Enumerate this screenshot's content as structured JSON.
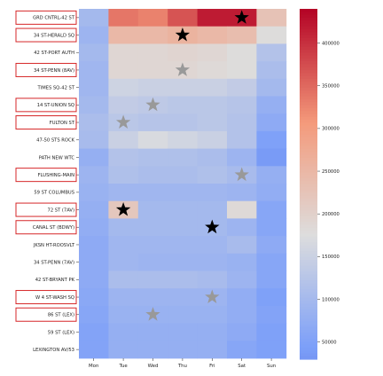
{
  "chart_data": {
    "type": "heatmap",
    "title": "",
    "xlabel": "",
    "ylabel": "",
    "days": [
      "Mon",
      "Tue",
      "Wed",
      "Thu",
      "Fri",
      "Sat",
      "Sun"
    ],
    "stations": [
      "GRD CNTRL-42 ST",
      "34 ST-HERALD SQ",
      "42 ST-PORT AUTH",
      "34 ST-PENN (8AV)",
      "TIMES SQ-42 ST",
      "14 ST-UNION SQ",
      "FULTON ST",
      "47-50 STS ROCK",
      "PATH NEW WTC",
      "FLUSHING-MAIN",
      "59 ST COLUMBUS",
      "72 ST (7AV)",
      "CANAL ST (BDWY)",
      "JKSN HT-ROOSVLT",
      "34 ST-PENN (7AV)",
      "42 ST-BRYANT PK",
      "W 4 ST-WASH SQ",
      "86 ST (LEX)",
      "59 ST (LEX)",
      "LEXINGTON AV/53"
    ],
    "highlighted_stations": [
      "GRD CNTRL-42 ST",
      "34 ST-HERALD SQ",
      "34 ST-PENN (8AV)",
      "14 ST-UNION SQ",
      "FULTON ST",
      "FLUSHING-MAIN",
      "72 ST (7AV)",
      "CANAL ST (BDWY)",
      "W 4 ST-WASH SQ",
      "86 ST (LEX)"
    ],
    "values": [
      [
        100000,
        340000,
        330000,
        370000,
        420000,
        420000,
        230000
      ],
      [
        90000,
        250000,
        250000,
        260000,
        250000,
        240000,
        180000
      ],
      [
        100000,
        190000,
        190000,
        195000,
        190000,
        180000,
        120000
      ],
      [
        95000,
        190000,
        190000,
        190000,
        185000,
        180000,
        110000
      ],
      [
        95000,
        155000,
        150000,
        150000,
        150000,
        140000,
        100000
      ],
      [
        100000,
        140000,
        135000,
        130000,
        130000,
        125000,
        80000
      ],
      [
        110000,
        130000,
        125000,
        125000,
        130000,
        120000,
        70000
      ],
      [
        105000,
        150000,
        170000,
        160000,
        150000,
        120000,
        50000
      ],
      [
        80000,
        120000,
        115000,
        115000,
        110000,
        90000,
        40000
      ],
      [
        90000,
        115000,
        110000,
        110000,
        115000,
        105000,
        80000
      ],
      [
        85000,
        95000,
        95000,
        95000,
        95000,
        90000,
        75000
      ],
      [
        80000,
        220000,
        100000,
        100000,
        100000,
        185000,
        60000
      ],
      [
        75000,
        100000,
        100000,
        100000,
        100000,
        90000,
        60000
      ],
      [
        70000,
        95000,
        95000,
        95000,
        95000,
        105000,
        70000
      ],
      [
        70000,
        95000,
        90000,
        90000,
        90000,
        85000,
        60000
      ],
      [
        70000,
        110000,
        110000,
        110000,
        105000,
        90000,
        60000
      ],
      [
        65000,
        90000,
        90000,
        90000,
        90000,
        75000,
        50000
      ],
      [
        60000,
        85000,
        85000,
        85000,
        85000,
        75000,
        55000
      ],
      [
        55000,
        80000,
        80000,
        80000,
        80000,
        70000,
        50000
      ],
      [
        55000,
        80000,
        80000,
        80000,
        80000,
        60000,
        50000
      ]
    ],
    "stars": [
      {
        "station": "GRD CNTRL-42 ST",
        "day": "Sat",
        "color": "#000000"
      },
      {
        "station": "34 ST-HERALD SQ",
        "day": "Thu",
        "color": "#000000"
      },
      {
        "station": "34 ST-PENN (8AV)",
        "day": "Thu",
        "color": "#999999"
      },
      {
        "station": "14 ST-UNION SQ",
        "day": "Wed",
        "color": "#999999"
      },
      {
        "station": "FULTON ST",
        "day": "Tue",
        "color": "#999999"
      },
      {
        "station": "FLUSHING-MAIN",
        "day": "Sat",
        "color": "#999999"
      },
      {
        "station": "72 ST (7AV)",
        "day": "Tue",
        "color": "#000000"
      },
      {
        "station": "CANAL ST (BDWY)",
        "day": "Fri",
        "color": "#000000"
      },
      {
        "station": "W 4 ST-WASH SQ",
        "day": "Fri",
        "color": "#999999"
      },
      {
        "station": "86 ST (LEX)",
        "day": "Wed",
        "color": "#999999"
      }
    ],
    "colorbar": {
      "vmin": 30000,
      "vmax": 440000,
      "ticks": [
        50000,
        100000,
        150000,
        200000,
        250000,
        300000,
        350000,
        400000
      ],
      "tick_labels": [
        "50000",
        "100000",
        "150000",
        "200000",
        "250000",
        "300000",
        "350000",
        "400000"
      ],
      "colormap": "coolwarm"
    },
    "highlight_color": "#d62728",
    "grid": false
  }
}
